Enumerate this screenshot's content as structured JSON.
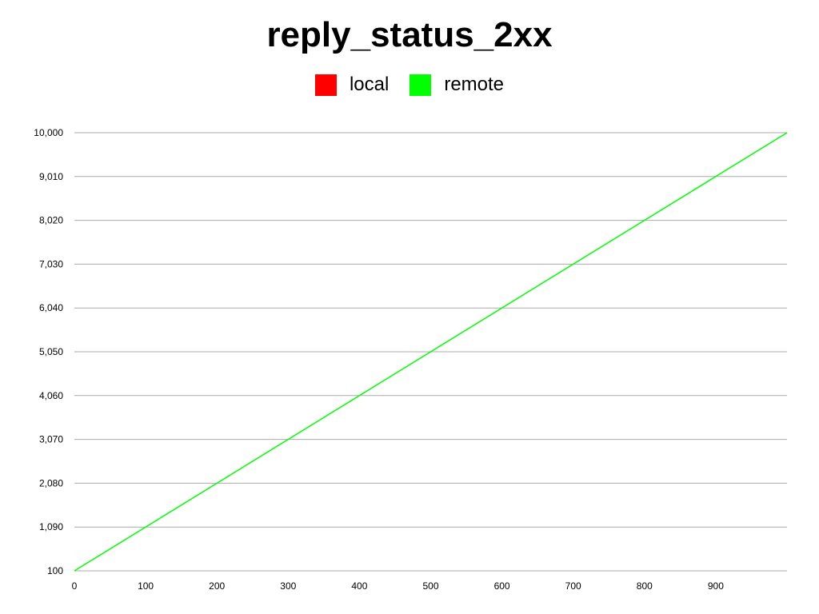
{
  "chart_data": {
    "type": "line",
    "title": "reply_status_2xx",
    "xlabel": "",
    "ylabel": "",
    "xlim": [
      0,
      1000
    ],
    "ylim": [
      100,
      10000
    ],
    "x_ticks": [
      0,
      100,
      200,
      300,
      400,
      500,
      600,
      700,
      800,
      900
    ],
    "x_tick_labels": [
      "0",
      "100",
      "200",
      "300",
      "400",
      "500",
      "600",
      "700",
      "800",
      "900"
    ],
    "y_ticks": [
      100,
      1090,
      2080,
      3070,
      4060,
      5050,
      6040,
      7030,
      8020,
      9010,
      10000
    ],
    "y_tick_labels": [
      "100",
      "1,090",
      "2,080",
      "3,070",
      "4,060",
      "5,050",
      "6,040",
      "7,030",
      "8,020",
      "9,010",
      "10,000"
    ],
    "grid": "horizontal",
    "legend_position": "top-center",
    "series": [
      {
        "name": "local",
        "color": "#ff0000",
        "x": [],
        "y": []
      },
      {
        "name": "remote",
        "color": "#00ff00",
        "x": [
          0,
          1000
        ],
        "y": [
          100,
          10000
        ]
      }
    ]
  }
}
